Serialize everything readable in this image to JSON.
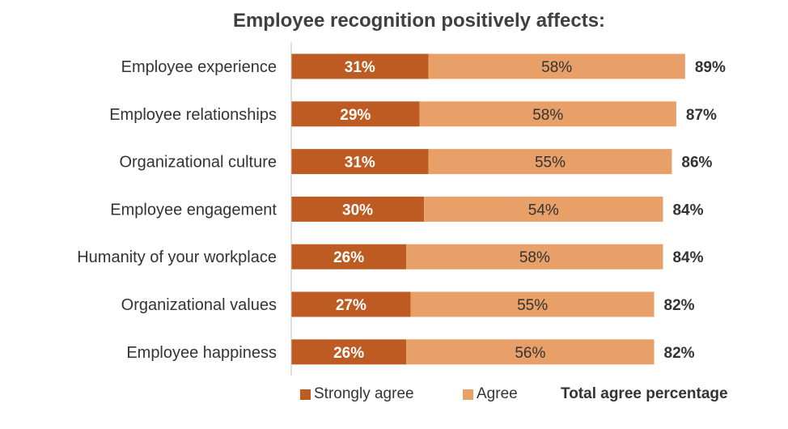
{
  "chart_data": {
    "type": "bar",
    "orientation": "horizontal",
    "stacked": true,
    "title": "Employee recognition positively affects:",
    "categories": [
      "Employee experience",
      "Employee relationships",
      "Organizational culture",
      "Employee engagement",
      "Humanity of your workplace",
      "Organizational values",
      "Employee happiness"
    ],
    "series": [
      {
        "name": "Strongly agree",
        "color": "#bd5b22",
        "values": [
          31,
          29,
          31,
          30,
          26,
          27,
          26
        ],
        "labels": [
          "31%",
          "29%",
          "31%",
          "30%",
          "26%",
          "27%",
          "26%"
        ]
      },
      {
        "name": "Agree",
        "color": "#e89f68",
        "values": [
          58,
          58,
          55,
          54,
          58,
          55,
          56
        ],
        "labels": [
          "58%",
          "58%",
          "55%",
          "54%",
          "58%",
          "55%",
          "56%"
        ]
      }
    ],
    "totals": {
      "name": "Total agree percentage",
      "values": [
        89,
        87,
        86,
        84,
        84,
        82,
        82
      ],
      "labels": [
        "89%",
        "87%",
        "86%",
        "84%",
        "84%",
        "82%",
        "82%"
      ]
    },
    "xlim": [
      0,
      100
    ],
    "grid": false,
    "legend": "bottom",
    "colors": {
      "strongly_agree": "#bd5b22",
      "agree": "#e89f68",
      "text": "#333333",
      "axis": "#bfbfbf"
    }
  }
}
